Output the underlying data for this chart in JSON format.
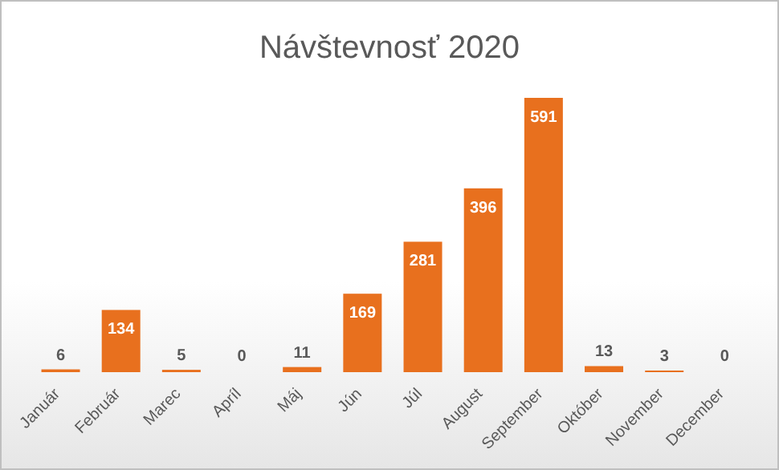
{
  "chart_data": {
    "type": "bar",
    "title": "Návštevnosť 2020",
    "categories": [
      "Január",
      "Február",
      "Marec",
      "Apríl",
      "Máj",
      "Jún",
      "Júl",
      "August",
      "September",
      "Október",
      "November",
      "December"
    ],
    "values": [
      6,
      134,
      5,
      0,
      11,
      169,
      281,
      396,
      591,
      13,
      3,
      0
    ],
    "color": "#e8701e",
    "data_labels": true,
    "grid": false,
    "legend": false
  }
}
